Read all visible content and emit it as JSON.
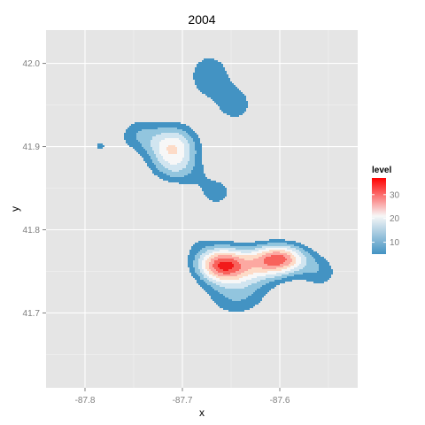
{
  "chart_data": {
    "type": "heatmap",
    "subtype": "filled-density-contour",
    "title": "2004",
    "xlabel": "x",
    "ylabel": "y",
    "xlim": [
      -87.84,
      -87.52
    ],
    "ylim": [
      41.61,
      42.04
    ],
    "x_ticks": [
      -87.8,
      -87.7,
      -87.6
    ],
    "x_tick_labels": [
      "-87.8",
      "-87.7",
      "-87.6"
    ],
    "y_ticks": [
      41.7,
      41.8,
      41.9,
      42.0
    ],
    "y_tick_labels": [
      "41.7",
      "41.8",
      "41.9",
      "42.0"
    ],
    "grid": true,
    "legend": {
      "title": "level",
      "position": "right",
      "range": [
        5,
        37
      ],
      "ticks": [
        10,
        20,
        30
      ],
      "tick_labels": [
        "10",
        "20",
        "30"
      ],
      "colors": {
        "low": "#4393c3",
        "mid": "#f7f7f7",
        "high": "#ff0000"
      }
    },
    "peaks": [
      {
        "x": -87.66,
        "y": 41.758,
        "level": 35
      },
      {
        "x": -87.6,
        "y": 41.765,
        "level": 33
      },
      {
        "x": -87.71,
        "y": 41.898,
        "level": 28
      },
      {
        "x": -87.67,
        "y": 41.998,
        "level": 12
      }
    ],
    "levels": [
      {
        "level": 6,
        "color": "#4393c3"
      },
      {
        "level": 10,
        "color": "#92c5de"
      },
      {
        "level": 14,
        "color": "#d1e5f0"
      },
      {
        "level": 18,
        "color": "#f7f7f7"
      },
      {
        "level": 22,
        "color": "#fddbc7"
      },
      {
        "level": 26,
        "color": "#fca8a1"
      },
      {
        "level": 30,
        "color": "#f8625c"
      },
      {
        "level": 34,
        "color": "#f21a1a"
      }
    ]
  }
}
